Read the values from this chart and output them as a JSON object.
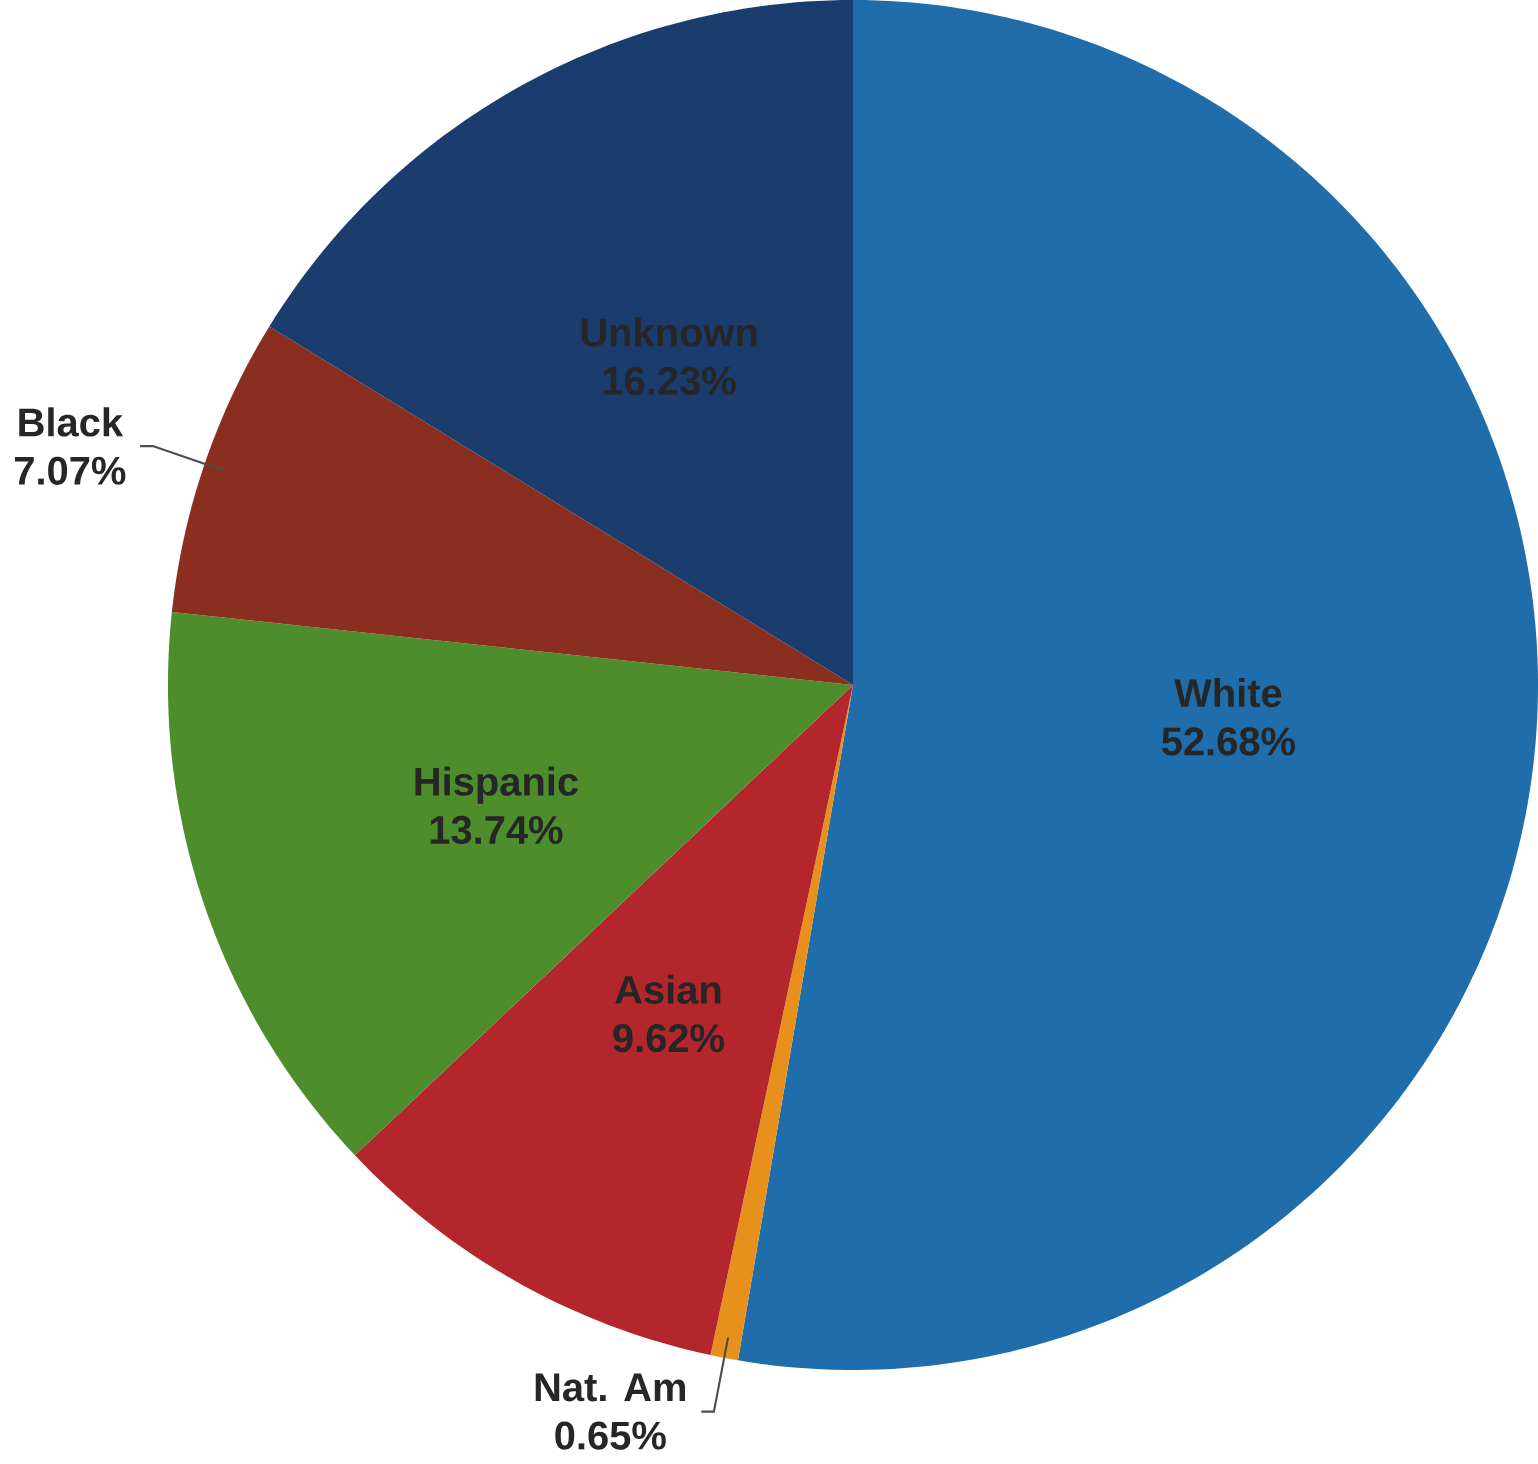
{
  "chart_data": {
    "type": "pie",
    "categories": [
      "White",
      "Nat. Am",
      "Asian",
      "Hispanic",
      "Black",
      "Unknown"
    ],
    "values": [
      52.68,
      0.65,
      9.62,
      13.74,
      7.07,
      16.23
    ],
    "value_labels": [
      "52.68%",
      "0.65%",
      "9.62%",
      "13.74%",
      "7.07%",
      "16.23%"
    ],
    "colors": [
      "#1f6eab",
      "#e8901c",
      "#b3262b",
      "#4e8d2b",
      "#8a2f1f",
      "#1b3d6d"
    ]
  }
}
